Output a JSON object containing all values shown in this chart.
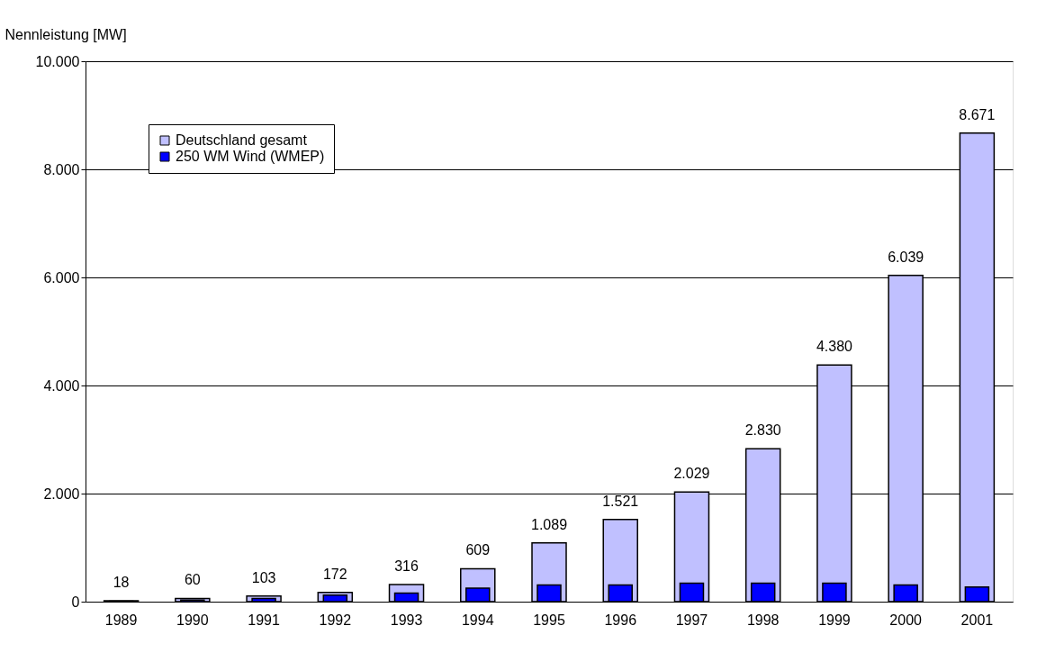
{
  "chart_data": {
    "type": "bar",
    "ylabel": "Nennleistung [MW]",
    "categories": [
      "1989",
      "1990",
      "1991",
      "1992",
      "1993",
      "1994",
      "1995",
      "1996",
      "1997",
      "1998",
      "1999",
      "2000",
      "2001"
    ],
    "series": [
      {
        "name": "Deutschland gesamt",
        "color": "#c0c0ff",
        "values": [
          18,
          60,
          103,
          172,
          316,
          609,
          1089,
          1521,
          2029,
          2830,
          4380,
          6039,
          8671
        ],
        "value_labels": [
          "18",
          "60",
          "103",
          "172",
          "316",
          "609",
          "1.089",
          "1.521",
          "2.029",
          "2.830",
          "4.380",
          "6.039",
          "8.671"
        ]
      },
      {
        "name": "250 WM Wind (WMEP)",
        "color": "#0000ff",
        "values": [
          10,
          30,
          60,
          120,
          160,
          250,
          310,
          310,
          340,
          340,
          340,
          310,
          270
        ]
      }
    ],
    "ylim": [
      0,
      10000
    ],
    "yticks": [
      0,
      {
        "value": 2000,
        "label": "2.000"
      },
      {
        "value": 4000,
        "label": "4.000"
      },
      {
        "value": 6000,
        "label": "6.000"
      },
      {
        "value": 8000,
        "label": "8.000"
      },
      {
        "value": 10000,
        "label": "10.000"
      }
    ],
    "grid": "y",
    "legend": "top left"
  }
}
